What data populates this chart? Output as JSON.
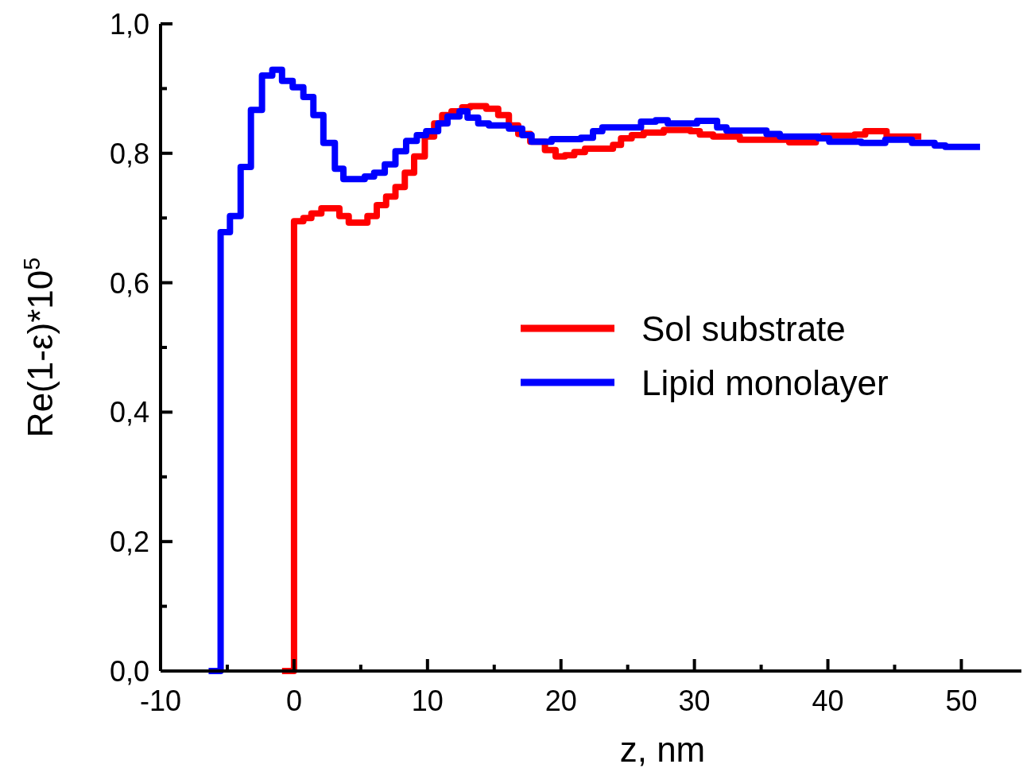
{
  "chart_data": {
    "type": "step",
    "xlabel": "z, nm",
    "ylabel": "Re(1-ε)*10$^{5}$",
    "xlim": [
      -10,
      54.5
    ],
    "ylim": [
      0,
      1.0
    ],
    "xticks": [
      -10,
      {
        "value": -5,
        "label": null
      },
      0,
      {
        "value": 5,
        "label": null
      },
      10,
      {
        "value": 15,
        "label": null
      },
      20,
      {
        "value": 25,
        "label": null
      },
      30,
      {
        "value": 35,
        "label": null
      },
      40,
      {
        "value": 45,
        "label": null
      },
      50
    ],
    "yticks": [
      {
        "value": 0,
        "label": "0,0"
      },
      {
        "value": 0.1,
        "label": null
      },
      {
        "value": 0.2,
        "label": "0,2"
      },
      {
        "value": 0.3,
        "label": null
      },
      {
        "value": 0.4,
        "label": "0,4"
      },
      {
        "value": 0.5,
        "label": null
      },
      {
        "value": 0.6,
        "label": "0,6"
      },
      {
        "value": 0.7,
        "label": null
      },
      {
        "value": 0.8,
        "label": "0,8"
      },
      {
        "value": 0.9,
        "label": null
      },
      {
        "value": 1.0,
        "label": "1,0"
      }
    ],
    "grid": false,
    "legend": "right",
    "marker": "none",
    "line_style": "solid",
    "series": [
      {
        "name": "Sol substrate",
        "color": "#ff0000",
        "x": [
          -0.9,
          0.0,
          0.7,
          1.3,
          2.05,
          3.4,
          4.1,
          5.5,
          6.2,
          6.9,
          7.6,
          8.3,
          9.0,
          9.8,
          10.5,
          11.1,
          11.8,
          12.6,
          13.2,
          14.4,
          15.3,
          16.1,
          16.8,
          17.7,
          18.8,
          19.6,
          20.3,
          21.0,
          21.8,
          23.9,
          24.5,
          25.3,
          26.2,
          27.7,
          29.7,
          30.4,
          31.4,
          33.4,
          37.1,
          39.1,
          39.6,
          42.0,
          42.8,
          44.4,
          47.0
        ],
        "values": [
          0,
          0.695,
          0.7,
          0.707,
          0.715,
          0.703,
          0.693,
          0.703,
          0.72,
          0.733,
          0.748,
          0.77,
          0.795,
          0.826,
          0.846,
          0.859,
          0.865,
          0.871,
          0.873,
          0.869,
          0.859,
          0.843,
          0.83,
          0.818,
          0.805,
          0.795,
          0.797,
          0.802,
          0.807,
          0.813,
          0.823,
          0.828,
          0.832,
          0.836,
          0.834,
          0.829,
          0.826,
          0.821,
          0.817,
          0.823,
          0.827,
          0.829,
          0.834,
          0.826,
          0.826
        ]
      },
      {
        "name": "Lipid monolayer",
        "color": "#0000ff",
        "x": [
          -6.4,
          -5.5,
          -4.8,
          -4.0,
          -3.23,
          -2.4,
          -1.63,
          -0.9,
          -0.1,
          0.7,
          1.45,
          2.2,
          3.06,
          3.7,
          5.3,
          6.0,
          6.8,
          7.6,
          8.4,
          9.2,
          9.9,
          10.8,
          11.5,
          12.4,
          13.0,
          13.8,
          14.6,
          16.1,
          17.1,
          17.8,
          19.3,
          21.5,
          22.4,
          23.1,
          26.0,
          27.1,
          28.0,
          30.2,
          31.7,
          32.4,
          35.4,
          36.4,
          39.3,
          40.1,
          42.5,
          44.3,
          46.3,
          48.0,
          48.8,
          51.4
        ],
        "values": [
          0,
          0.678,
          0.703,
          0.779,
          0.867,
          0.92,
          0.929,
          0.912,
          0.902,
          0.887,
          0.859,
          0.816,
          0.776,
          0.76,
          0.764,
          0.77,
          0.783,
          0.803,
          0.819,
          0.828,
          0.834,
          0.846,
          0.857,
          0.865,
          0.855,
          0.846,
          0.843,
          0.838,
          0.828,
          0.818,
          0.822,
          0.824,
          0.834,
          0.84,
          0.849,
          0.851,
          0.846,
          0.85,
          0.84,
          0.835,
          0.83,
          0.826,
          0.823,
          0.818,
          0.816,
          0.821,
          0.816,
          0.812,
          0.81,
          0.81
        ]
      }
    ]
  }
}
